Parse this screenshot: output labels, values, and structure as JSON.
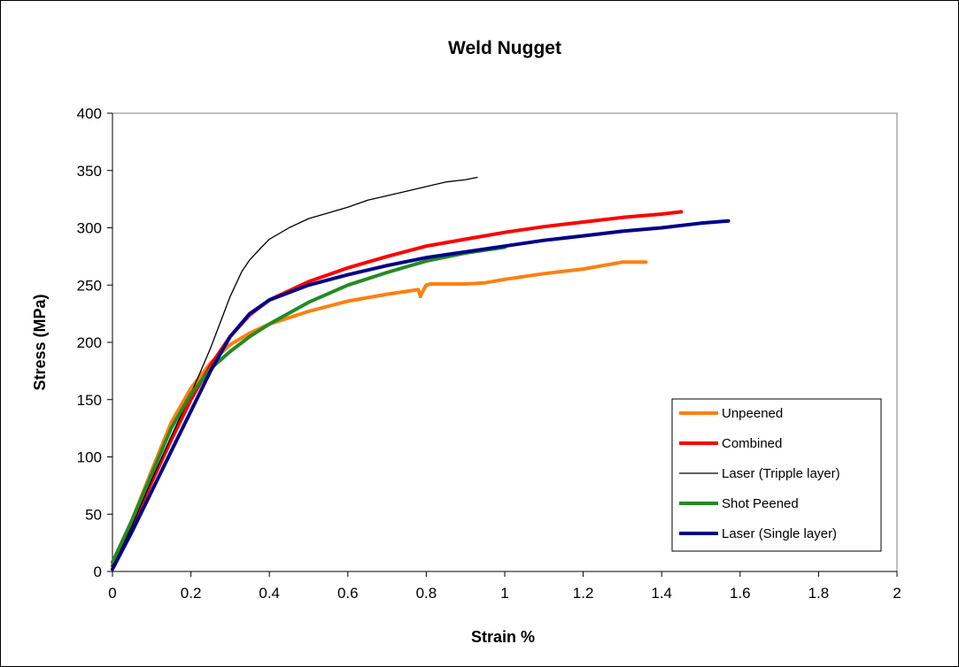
{
  "chart_data": {
    "type": "line",
    "title": "Weld Nugget",
    "xlabel": "Strain %",
    "ylabel": "Stress (MPa)",
    "xlim": [
      0,
      2
    ],
    "ylim": [
      0,
      400
    ],
    "x_ticks": [
      "0",
      "0.2",
      "0.4",
      "0.6",
      "0.8",
      "1",
      "1.2",
      "1.4",
      "1.6",
      "1.8",
      "2"
    ],
    "y_ticks": [
      "0",
      "50",
      "100",
      "150",
      "200",
      "250",
      "300",
      "350",
      "400"
    ],
    "grid": false,
    "legend_position": "bottom-right",
    "series": [
      {
        "name": "Unpeened",
        "color": "#FF7F0E",
        "x": [
          0.0,
          0.05,
          0.1,
          0.15,
          0.2,
          0.25,
          0.3,
          0.35,
          0.4,
          0.5,
          0.6,
          0.7,
          0.78,
          0.785,
          0.79,
          0.8,
          0.81,
          0.85,
          0.9,
          0.95,
          1.0,
          1.1,
          1.2,
          1.3,
          1.36
        ],
        "y": [
          5,
          45,
          88,
          130,
          160,
          182,
          198,
          208,
          216,
          227,
          236,
          242,
          246,
          240,
          244,
          250,
          251,
          251,
          251,
          252,
          255,
          260,
          264,
          270,
          270
        ]
      },
      {
        "name": "Combined",
        "color": "#FF0000",
        "x": [
          0.0,
          0.05,
          0.1,
          0.15,
          0.2,
          0.25,
          0.3,
          0.35,
          0.4,
          0.5,
          0.6,
          0.7,
          0.8,
          0.9,
          1.0,
          1.1,
          1.2,
          1.3,
          1.4,
          1.45
        ],
        "y": [
          5,
          40,
          78,
          115,
          150,
          180,
          205,
          224,
          237,
          253,
          265,
          275,
          284,
          290,
          296,
          301,
          305,
          309,
          312,
          314
        ]
      },
      {
        "name": "Laser (Tripple layer)",
        "color": "#000000",
        "x": [
          0.0,
          0.05,
          0.1,
          0.15,
          0.2,
          0.25,
          0.3,
          0.33,
          0.35,
          0.38,
          0.4,
          0.45,
          0.5,
          0.55,
          0.6,
          0.65,
          0.7,
          0.75,
          0.8,
          0.85,
          0.9,
          0.93
        ],
        "y": [
          5,
          40,
          80,
          118,
          155,
          195,
          240,
          262,
          272,
          283,
          290,
          300,
          308,
          313,
          318,
          324,
          328,
          332,
          336,
          340,
          342,
          344
        ]
      },
      {
        "name": "Shot Peened",
        "color": "#228B22",
        "x": [
          0.0,
          0.05,
          0.1,
          0.15,
          0.2,
          0.25,
          0.3,
          0.35,
          0.4,
          0.5,
          0.6,
          0.7,
          0.8,
          0.9,
          1.0
        ],
        "y": [
          8,
          45,
          85,
          125,
          155,
          177,
          192,
          205,
          216,
          235,
          250,
          261,
          271,
          278,
          283
        ]
      },
      {
        "name": "Laser (Single layer)",
        "color": "#00008B",
        "x": [
          0.0,
          0.05,
          0.1,
          0.15,
          0.2,
          0.25,
          0.3,
          0.35,
          0.4,
          0.5,
          0.6,
          0.7,
          0.8,
          0.9,
          1.0,
          1.1,
          1.2,
          1.3,
          1.4,
          1.5,
          1.57
        ],
        "y": [
          2,
          35,
          70,
          105,
          140,
          175,
          205,
          225,
          237,
          250,
          259,
          267,
          274,
          279,
          284,
          289,
          293,
          297,
          300,
          304,
          306
        ]
      }
    ]
  }
}
